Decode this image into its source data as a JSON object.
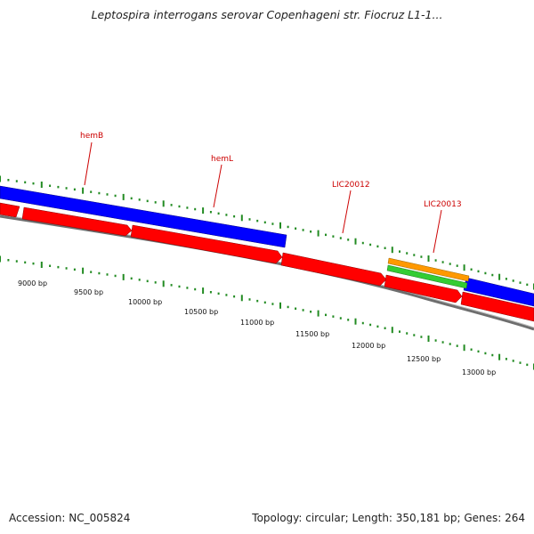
{
  "title": "Leptospira interrogans serovar Copenhageni str. Fiocruz L1-1...",
  "footer": {
    "accession": "Accession: NC_005824",
    "stats": "Topology: circular; Length: 350,181 bp; Genes: 264"
  },
  "colors": {
    "forward_cds": "#0000ff",
    "reverse_cds": "#ff0000",
    "orange_feature": "#ff9900",
    "green_feature": "#33cc33",
    "backbone": "#888888",
    "ticks": "#228b22",
    "labels": "#cc0000"
  },
  "gene_labels": [
    "hemB",
    "hemL",
    "LIC20012",
    "LIC20013"
  ],
  "bp_labels": [
    "9000 bp",
    "9500 bp",
    "10000 bp",
    "10500 bp",
    "11000 bp",
    "11500 bp",
    "12000 bp",
    "12500 bp",
    "13000 bp"
  ]
}
